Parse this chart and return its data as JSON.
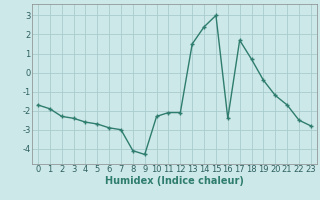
{
  "x": [
    0,
    1,
    2,
    3,
    4,
    5,
    6,
    7,
    8,
    9,
    10,
    11,
    12,
    13,
    14,
    15,
    16,
    17,
    18,
    19,
    20,
    21,
    22,
    23
  ],
  "y": [
    -1.7,
    -1.9,
    -2.3,
    -2.4,
    -2.6,
    -2.7,
    -2.9,
    -3.0,
    -4.1,
    -4.3,
    -2.3,
    -2.1,
    -2.1,
    1.5,
    2.4,
    3.0,
    -2.4,
    1.7,
    0.7,
    -0.4,
    -1.2,
    -1.7,
    -2.5,
    -2.8
  ],
  "line_color": "#2e7d6e",
  "marker": "+",
  "marker_size": 3,
  "bg_color": "#cde8e8",
  "grid_color": "#aacccc",
  "xlabel": "Humidex (Indice chaleur)",
  "xlim": [
    -0.5,
    23.5
  ],
  "ylim": [
    -4.8,
    3.6
  ],
  "yticks": [
    -4,
    -3,
    -2,
    -1,
    0,
    1,
    2,
    3
  ],
  "xticks": [
    0,
    1,
    2,
    3,
    4,
    5,
    6,
    7,
    8,
    9,
    10,
    11,
    12,
    13,
    14,
    15,
    16,
    17,
    18,
    19,
    20,
    21,
    22,
    23
  ],
  "xlabel_fontsize": 7,
  "tick_fontsize": 6,
  "line_width": 1.0,
  "markeredgewidth": 1.0
}
